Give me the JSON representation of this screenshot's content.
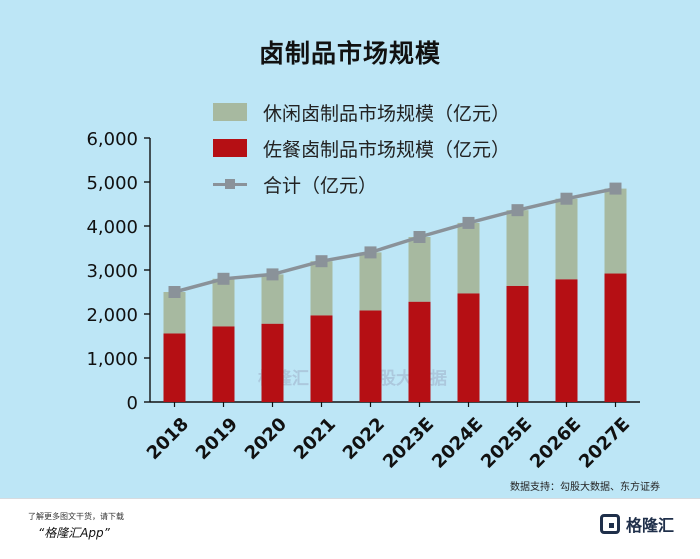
{
  "title": "卤制品市场规模",
  "legend": [
    {
      "name": "休闲卤制品市场规模（亿元）",
      "color": "#a7b9a0"
    },
    {
      "name": "佐餐卤制品市场规模（亿元）",
      "color": "#b50f14"
    },
    {
      "name": "合计（亿元）",
      "color": "#8a9299"
    }
  ],
  "chart_data": {
    "type": "bar",
    "stacked": true,
    "categories": [
      "2018",
      "2019",
      "2020",
      "2021",
      "2022",
      "2023E",
      "2024E",
      "2025E",
      "2026E",
      "2027E"
    ],
    "series": [
      {
        "name": "佐餐卤制品市场规模（亿元）",
        "color": "#b50f14",
        "values": [
          1560,
          1720,
          1780,
          1970,
          2080,
          2280,
          2470,
          2640,
          2790,
          2920
        ]
      },
      {
        "name": "休闲卤制品市场规模（亿元）",
        "color": "#a7b9a0",
        "values": [
          940,
          1080,
          1120,
          1230,
          1320,
          1470,
          1600,
          1720,
          1830,
          1930
        ]
      },
      {
        "name": "合计（亿元）",
        "type": "line",
        "color": "#8a9299",
        "values": [
          2500,
          2800,
          2900,
          3200,
          3400,
          3750,
          4070,
          4360,
          4620,
          4850
        ]
      }
    ],
    "ylim": [
      0,
      6000
    ],
    "yticks": [
      "0",
      "1,000",
      "2,000",
      "3,000",
      "4,000",
      "5,000",
      "6,000"
    ],
    "grid": false,
    "legend_position": "top-left"
  },
  "watermark": {
    "left": "格隆汇",
    "right": "勾股大数据"
  },
  "source": "数据支持：勾股大数据、东方证券",
  "footer": {
    "line1": "了解更多图文干货，请下载",
    "line2": "“格隆汇App”",
    "logo": "格隆汇"
  }
}
